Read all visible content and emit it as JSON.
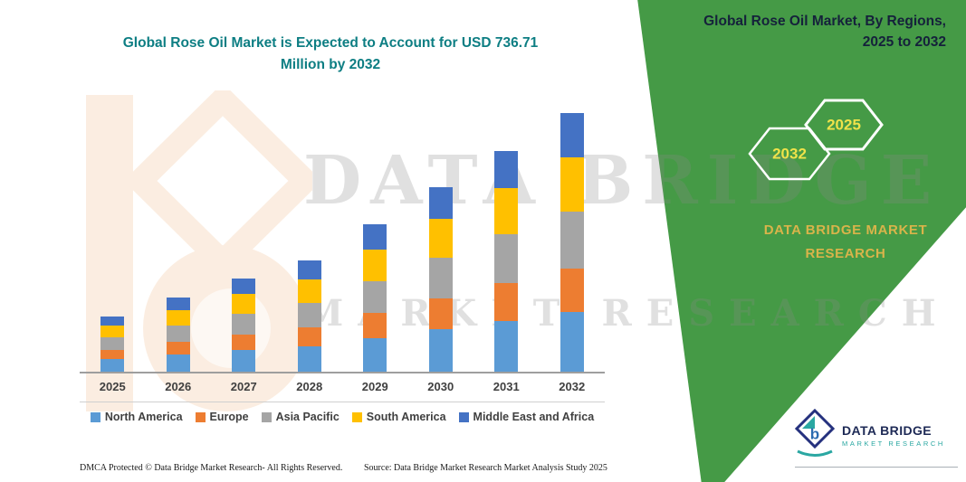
{
  "theme": {
    "band_green": "#459A46",
    "title_teal": "#0D7E83",
    "hex_yellow": "#EFE24A",
    "brand_gold": "#D9B44A",
    "text_dark": "#15213B"
  },
  "header": {
    "band_line1": "Global Rose Oil Market, By Regions,",
    "band_line2": "2025 to 2032",
    "hex_back": "2032",
    "hex_front": "2025",
    "brand_line1": "DATA BRIDGE MARKET",
    "brand_line2": "RESEARCH"
  },
  "title": {
    "line1": "Global Rose Oil Market is Expected to Account for USD 736.71",
    "line2": "Million by 2032"
  },
  "watermark": {
    "line1": "DATA BRIDGE",
    "line2": "MARKET RESEARCH"
  },
  "chart_data": {
    "type": "bar",
    "stacked": true,
    "title": "Global Rose Oil Market is Expected to Account for USD 736.71 Million by 2032",
    "categories": [
      "2025",
      "2026",
      "2027",
      "2028",
      "2029",
      "2030",
      "2031",
      "2032"
    ],
    "series": [
      {
        "name": "North America",
        "color": "#5B9BD5",
        "values": [
          36,
          49,
          61,
          73,
          96,
          121,
          145,
          169
        ]
      },
      {
        "name": "Europe",
        "color": "#ED7D31",
        "values": [
          27,
          36,
          45,
          54,
          71,
          89,
          107,
          125
        ]
      },
      {
        "name": "Asia Pacific",
        "color": "#A5A5A5",
        "values": [
          35,
          47,
          59,
          70,
          92,
          116,
          139,
          162
        ]
      },
      {
        "name": "South America",
        "color": "#FFC000",
        "values": [
          33,
          44,
          56,
          67,
          88,
          110,
          132,
          155
        ]
      },
      {
        "name": "Middle East and Africa",
        "color": "#4472C4",
        "values": [
          27,
          36,
          45,
          54,
          72,
          89,
          107,
          125.71
        ]
      }
    ],
    "totals": [
      158,
      212,
      266,
      318,
      419,
      525,
      630,
      736.71
    ],
    "units": "USD Million",
    "ylim": [
      0,
      750
    ],
    "grid": false,
    "legend_position": "bottom"
  },
  "footer": {
    "left": "DMCA Protected © Data Bridge Market Research-  All Rights Reserved.",
    "source": "Source: Data Bridge Market Research  Market Analysis Study 2025"
  },
  "logo": {
    "name": "DATA BRIDGE",
    "subtitle": "Market Research"
  }
}
